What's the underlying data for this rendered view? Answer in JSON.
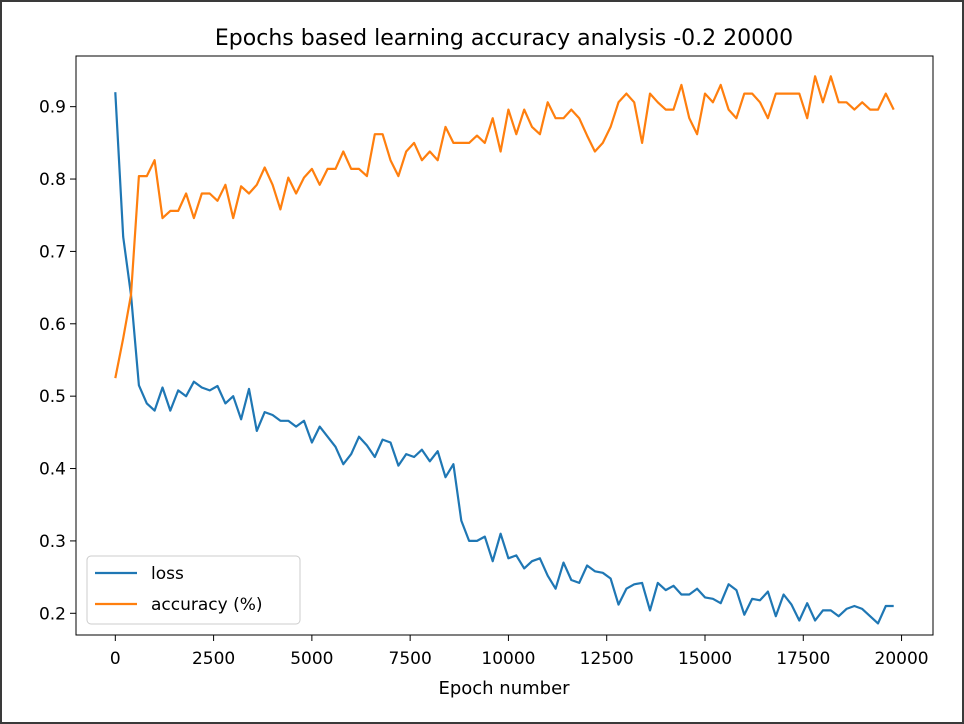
{
  "chart_data": {
    "type": "line",
    "title": "Epochs based learning accuracy analysis -0.2 20000",
    "xlabel": "Epoch number",
    "ylabel": "",
    "xlim": [
      -1000,
      20800
    ],
    "ylim": [
      0.17,
      0.97
    ],
    "xticks": [
      0,
      2500,
      5000,
      7500,
      10000,
      12500,
      15000,
      17500,
      20000
    ],
    "yticks": [
      0.2,
      0.3,
      0.4,
      0.5,
      0.6,
      0.7,
      0.8,
      0.9
    ],
    "grid": false,
    "legend_position": "lower-left",
    "x": [
      0,
      200,
      400,
      600,
      800,
      1000,
      1200,
      1400,
      1600,
      1800,
      2000,
      2200,
      2400,
      2600,
      2800,
      3000,
      3200,
      3400,
      3600,
      3800,
      4000,
      4200,
      4400,
      4600,
      4800,
      5000,
      5200,
      5400,
      5600,
      5800,
      6000,
      6200,
      6400,
      6600,
      6800,
      7000,
      7200,
      7400,
      7600,
      7800,
      8000,
      8200,
      8400,
      8600,
      8800,
      9000,
      9200,
      9400,
      9600,
      9800,
      10000,
      10200,
      10400,
      10600,
      10800,
      11000,
      11200,
      11400,
      11600,
      11800,
      12000,
      12200,
      12400,
      12600,
      12800,
      13000,
      13200,
      13400,
      13600,
      13800,
      14000,
      14200,
      14400,
      14600,
      14800,
      15000,
      15200,
      15400,
      15600,
      15800,
      16000,
      16200,
      16400,
      16600,
      16800,
      17000,
      17200,
      17400,
      17600,
      17800,
      18000,
      18200,
      18400,
      18600,
      18800,
      19000,
      19200,
      19400,
      19600,
      19800
    ],
    "series": [
      {
        "name": "loss",
        "color": "#1f77b4",
        "values": [
          0.92,
          0.72,
          0.64,
          0.515,
          0.49,
          0.48,
          0.512,
          0.48,
          0.508,
          0.5,
          0.52,
          0.512,
          0.508,
          0.514,
          0.49,
          0.5,
          0.468,
          0.51,
          0.452,
          0.478,
          0.474,
          0.466,
          0.466,
          0.458,
          0.466,
          0.436,
          0.458,
          0.444,
          0.43,
          0.406,
          0.42,
          0.444,
          0.432,
          0.416,
          0.44,
          0.436,
          0.404,
          0.42,
          0.416,
          0.426,
          0.41,
          0.424,
          0.388,
          0.406,
          0.328,
          0.3,
          0.3,
          0.306,
          0.272,
          0.31,
          0.276,
          0.28,
          0.262,
          0.272,
          0.276,
          0.252,
          0.234,
          0.27,
          0.246,
          0.242,
          0.266,
          0.258,
          0.256,
          0.248,
          0.212,
          0.234,
          0.24,
          0.242,
          0.204,
          0.242,
          0.232,
          0.238,
          0.226,
          0.226,
          0.234,
          0.222,
          0.22,
          0.214,
          0.24,
          0.232,
          0.198,
          0.22,
          0.218,
          0.23,
          0.196,
          0.226,
          0.212,
          0.19,
          0.214,
          0.19,
          0.204,
          0.204,
          0.196,
          0.206,
          0.21,
          0.206,
          0.196,
          0.186,
          0.21,
          0.21
        ]
      },
      {
        "name": "accuracy (%)",
        "color": "#ff7f0e",
        "values": [
          0.525,
          0.58,
          0.64,
          0.804,
          0.804,
          0.826,
          0.746,
          0.756,
          0.756,
          0.78,
          0.746,
          0.78,
          0.78,
          0.77,
          0.792,
          0.746,
          0.79,
          0.78,
          0.792,
          0.816,
          0.792,
          0.758,
          0.802,
          0.78,
          0.802,
          0.814,
          0.792,
          0.814,
          0.814,
          0.838,
          0.814,
          0.814,
          0.804,
          0.862,
          0.862,
          0.826,
          0.804,
          0.838,
          0.85,
          0.826,
          0.838,
          0.826,
          0.872,
          0.85,
          0.85,
          0.85,
          0.86,
          0.85,
          0.884,
          0.838,
          0.896,
          0.862,
          0.896,
          0.872,
          0.862,
          0.906,
          0.884,
          0.884,
          0.896,
          0.884,
          0.86,
          0.838,
          0.85,
          0.872,
          0.906,
          0.918,
          0.906,
          0.85,
          0.918,
          0.906,
          0.896,
          0.896,
          0.93,
          0.884,
          0.862,
          0.918,
          0.906,
          0.93,
          0.896,
          0.884,
          0.918,
          0.918,
          0.906,
          0.884,
          0.918,
          0.918,
          0.918,
          0.918,
          0.884,
          0.942,
          0.906,
          0.942,
          0.906,
          0.906,
          0.896,
          0.906,
          0.896,
          0.896,
          0.918,
          0.896
        ]
      }
    ]
  }
}
